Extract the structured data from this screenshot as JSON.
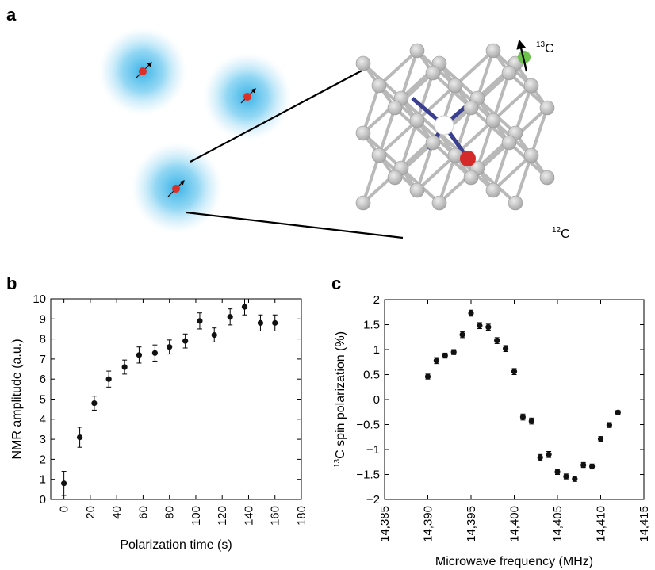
{
  "panel_labels": {
    "a": "a",
    "b": "b",
    "c": "c"
  },
  "panel_a": {
    "label_c13_sup": "13",
    "label_c13": "C",
    "label_c12_sup": "12",
    "label_c12": "C",
    "colors": {
      "glow": "#39b3e6",
      "spin": "#d9302a",
      "lattice_atom": "#c8c8c8",
      "lattice_bond": "#b9b9b9",
      "nv_bond": "#3a3f8f",
      "vacancy": "#ffffff",
      "nitrogen": "#d42a2a",
      "c13_atom": "#6cc24a"
    }
  },
  "chart_data": [
    {
      "type": "scatter",
      "panel": "b",
      "xlabel": "Polarization time (s)",
      "ylabel": "NMR amplitude (a.u.)",
      "xlim": [
        -10,
        180
      ],
      "ylim": [
        0,
        10
      ],
      "xticks": [
        0,
        20,
        40,
        60,
        80,
        100,
        120,
        140,
        160,
        180
      ],
      "xtick_labels": [
        "0",
        "20",
        "40",
        "60",
        "80",
        "100",
        "120",
        "140",
        "160",
        "180"
      ],
      "yticks": [
        0,
        1,
        2,
        3,
        4,
        5,
        6,
        7,
        8,
        9,
        10
      ],
      "ytick_labels": [
        "0",
        "1",
        "2",
        "3",
        "4",
        "5",
        "6",
        "7",
        "8",
        "9",
        "10"
      ],
      "grid": false,
      "x": [
        0,
        12,
        23,
        34,
        46,
        57,
        69,
        80,
        92,
        103,
        114,
        126,
        137,
        149,
        160
      ],
      "y": [
        0.8,
        3.1,
        4.8,
        6.0,
        6.6,
        7.2,
        7.3,
        7.6,
        7.9,
        8.9,
        8.2,
        9.1,
        9.6,
        8.8,
        8.8
      ],
      "yerr": [
        0.6,
        0.5,
        0.35,
        0.4,
        0.35,
        0.4,
        0.4,
        0.35,
        0.35,
        0.4,
        0.35,
        0.4,
        0.4,
        0.4,
        0.4
      ]
    },
    {
      "type": "scatter",
      "panel": "c",
      "xlabel": "Microwave frequency (MHz)",
      "ylabel_sup": "13",
      "ylabel": "C spin polarization (%)",
      "xlim": [
        14385,
        14415
      ],
      "ylim": [
        -2,
        2
      ],
      "xticks": [
        14385,
        14390,
        14395,
        14400,
        14405,
        14410,
        14415
      ],
      "xtick_labels": [
        "14,385",
        "14,390",
        "14,395",
        "14,400",
        "14,405",
        "14,410",
        "14,415"
      ],
      "yticks": [
        -2,
        -1.5,
        -1,
        -0.5,
        0,
        0.5,
        1,
        1.5,
        2
      ],
      "ytick_labels": [
        "−2",
        "−1.5",
        "−1",
        "−0.5",
        "0",
        "0.5",
        "1",
        "1.5",
        "2"
      ],
      "grid": false,
      "x": [
        14390,
        14391,
        14392,
        14393,
        14394,
        14395,
        14396,
        14397,
        14398,
        14399,
        14400,
        14401,
        14402,
        14403,
        14404,
        14405,
        14406,
        14407,
        14408,
        14409,
        14410,
        14411,
        14412
      ],
      "y": [
        0.46,
        0.78,
        0.88,
        0.95,
        1.3,
        1.73,
        1.48,
        1.45,
        1.18,
        1.02,
        0.56,
        -0.35,
        -0.43,
        -1.16,
        -1.1,
        -1.45,
        -1.54,
        -1.59,
        -1.31,
        -1.34,
        -0.79,
        -0.51,
        -0.26
      ],
      "yerr": [
        0.05,
        0.06,
        0.05,
        0.05,
        0.06,
        0.06,
        0.06,
        0.06,
        0.06,
        0.06,
        0.06,
        0.06,
        0.06,
        0.06,
        0.06,
        0.05,
        0.05,
        0.05,
        0.05,
        0.05,
        0.05,
        0.05,
        0.04
      ]
    }
  ]
}
